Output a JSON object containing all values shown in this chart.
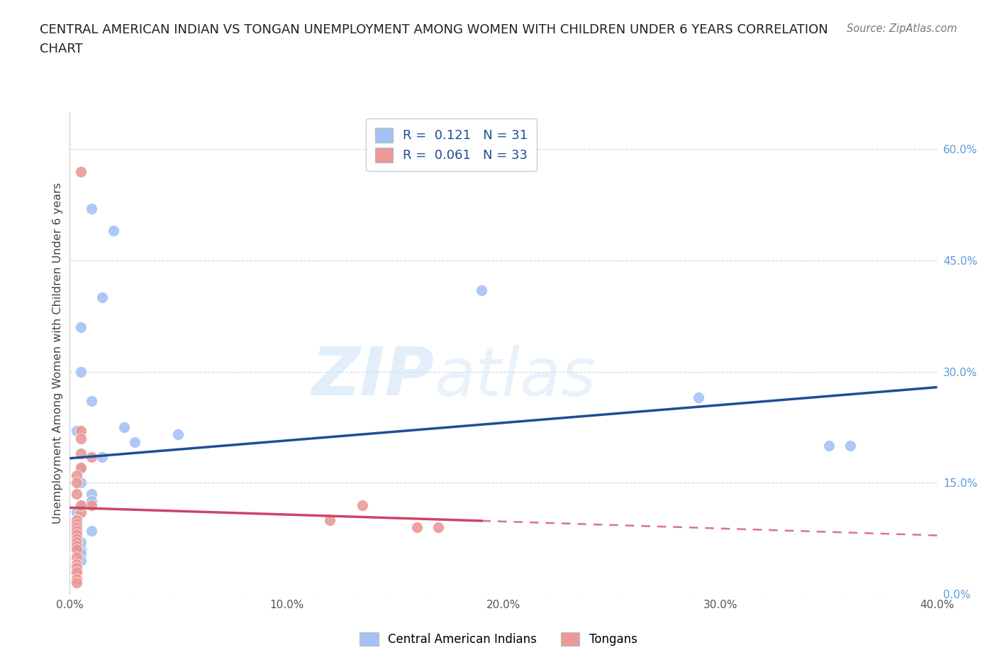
{
  "title_line1": "CENTRAL AMERICAN INDIAN VS TONGAN UNEMPLOYMENT AMONG WOMEN WITH CHILDREN UNDER 6 YEARS CORRELATION",
  "title_line2": "CHART",
  "source": "Source: ZipAtlas.com",
  "ylabel": "Unemployment Among Women with Children Under 6 years",
  "xlim": [
    0.0,
    40.0
  ],
  "ylim": [
    0.0,
    65.0
  ],
  "yticks": [
    0.0,
    15.0,
    30.0,
    45.0,
    60.0
  ],
  "xticks": [
    0.0,
    10.0,
    20.0,
    30.0,
    40.0
  ],
  "blue_color": "#a4c2f4",
  "pink_color": "#ea9999",
  "blue_line_color": "#1f4e96",
  "pink_line_color": "#cc4466",
  "blue_R": 0.121,
  "blue_N": 31,
  "pink_R": 0.061,
  "pink_N": 33,
  "watermark_zip": "ZIP",
  "watermark_atlas": "atlas",
  "background_color": "#ffffff",
  "grid_color": "#cccccc",
  "right_axis_color": "#5b9bd5",
  "blue_scatter_x": [
    1.0,
    2.0,
    1.5,
    0.5,
    0.5,
    1.0,
    0.3,
    3.0,
    2.5,
    1.5,
    0.5,
    0.5,
    1.0,
    0.5,
    1.0,
    0.3,
    0.3,
    0.3,
    0.3,
    0.3,
    19.0,
    5.0,
    0.5,
    29.0,
    36.0,
    35.0,
    0.5,
    0.5,
    0.5,
    1.0,
    0.3
  ],
  "blue_scatter_y": [
    52.0,
    49.0,
    40.0,
    36.0,
    30.0,
    26.0,
    22.0,
    20.5,
    22.5,
    18.5,
    17.0,
    15.0,
    13.5,
    12.0,
    12.5,
    11.0,
    10.0,
    9.5,
    9.0,
    8.0,
    41.0,
    21.5,
    6.0,
    26.5,
    20.0,
    20.0,
    7.0,
    5.5,
    4.5,
    8.5,
    8.0
  ],
  "pink_scatter_x": [
    0.5,
    0.5,
    0.5,
    0.5,
    1.0,
    0.5,
    0.3,
    0.3,
    0.3,
    1.0,
    0.5,
    0.3,
    0.3,
    0.3,
    0.3,
    0.3,
    0.3,
    0.3,
    0.3,
    0.3,
    0.3,
    0.3,
    0.3,
    0.3,
    13.5,
    12.0,
    0.5,
    16.0,
    17.0,
    0.3,
    0.3,
    0.3,
    0.3
  ],
  "pink_scatter_y": [
    57.0,
    22.0,
    21.0,
    19.0,
    18.5,
    17.0,
    16.0,
    15.0,
    13.5,
    12.0,
    11.0,
    10.0,
    10.0,
    9.5,
    9.0,
    8.5,
    8.0,
    7.5,
    7.0,
    6.5,
    6.0,
    5.0,
    4.0,
    3.0,
    12.0,
    10.0,
    12.0,
    9.0,
    9.0,
    3.5,
    3.0,
    2.0,
    1.5
  ],
  "blue_line_x_start": 0.0,
  "blue_line_x_end": 40.0,
  "pink_solid_x_end": 19.0,
  "pink_dashed_x_start": 19.0,
  "pink_dashed_x_end": 40.0
}
